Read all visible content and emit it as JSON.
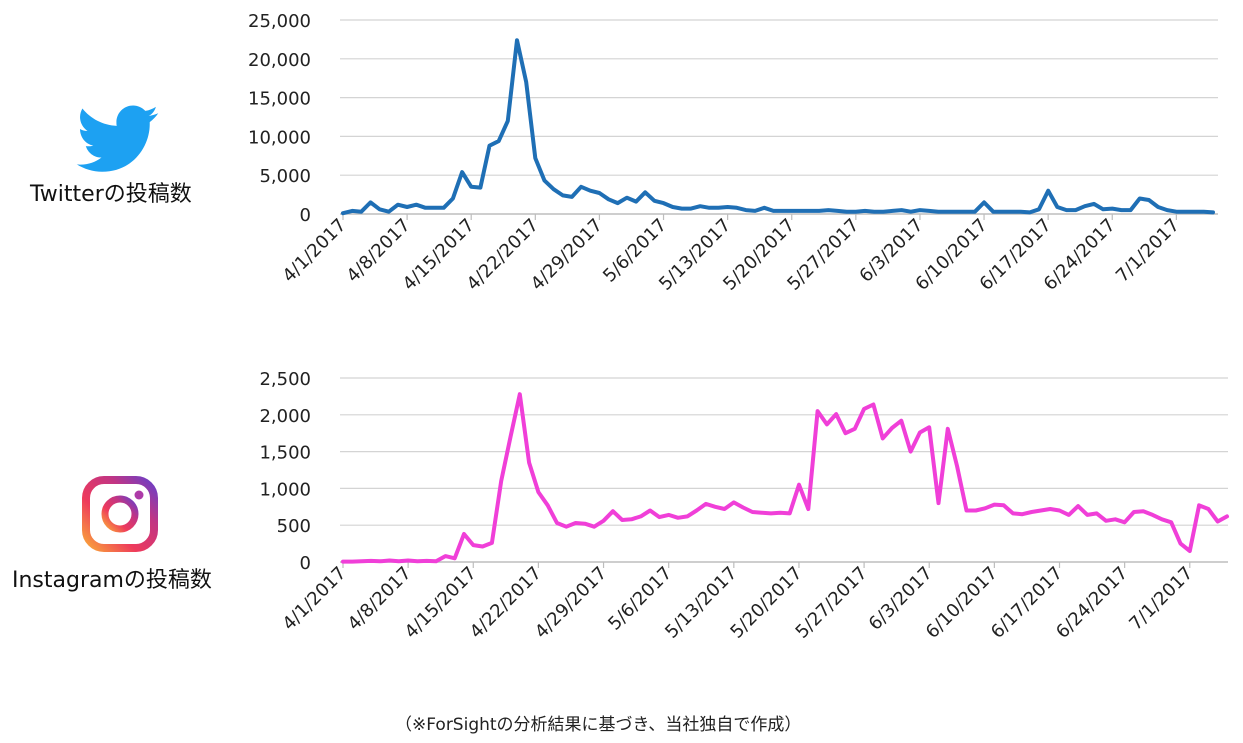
{
  "twitter_label": "Twitterの投稿数",
  "instagram_label": "Instagramの投稿数",
  "footnote": "（※ForSightの分析結果に基づき、当社独自で作成）",
  "icons": {
    "twitter": "twitter-bird-icon",
    "instagram": "instagram-camera-icon"
  },
  "colors": {
    "twitter": "#1f6fb5",
    "instagram": "#f03fd8",
    "grid": "#d4d4d4"
  },
  "chart_data": [
    {
      "type": "line",
      "x_tick_labels": [
        "4/1/2017",
        "4/8/2017",
        "4/15/2017",
        "4/22/2017",
        "4/29/2017",
        "5/6/2017",
        "5/13/2017",
        "5/20/2017",
        "5/27/2017",
        "6/3/2017",
        "6/10/2017",
        "6/17/2017",
        "6/24/2017",
        "7/1/2017"
      ],
      "y_tick_labels": [
        "0",
        "5,000",
        "10,000",
        "15,000",
        "20,000",
        "25,000"
      ],
      "ylim": [
        0,
        25000
      ],
      "grid": true,
      "series": [
        {
          "color": "#1f6fb5",
          "values": [
            100,
            400,
            300,
            1500,
            600,
            300,
            1200,
            900,
            1200,
            800,
            800,
            800,
            2000,
            5400,
            3500,
            3400,
            8800,
            9400,
            12000,
            22400,
            17000,
            7200,
            4300,
            3200,
            2400,
            2200,
            3500,
            3000,
            2700,
            1900,
            1400,
            2100,
            1600,
            2800,
            1700,
            1400,
            900,
            700,
            700,
            1000,
            800,
            800,
            900,
            800,
            500,
            400,
            800,
            400,
            400,
            400,
            400,
            400,
            400,
            500,
            400,
            300,
            300,
            400,
            300,
            300,
            400,
            500,
            300,
            500,
            400,
            300,
            300,
            300,
            300,
            300,
            1500,
            300,
            300,
            300,
            300,
            200,
            600,
            3000,
            900,
            500,
            500,
            1000,
            1300,
            600,
            700,
            500,
            500,
            2000,
            1800,
            900,
            500,
            300,
            300,
            300,
            300,
            200
          ]
        }
      ]
    },
    {
      "type": "line",
      "x_tick_labels": [
        "4/1/2017",
        "4/8/2017",
        "4/15/2017",
        "4/22/2017",
        "4/29/2017",
        "5/6/2017",
        "5/13/2017",
        "5/20/2017",
        "5/27/2017",
        "6/3/2017",
        "6/10/2017",
        "6/17/2017",
        "6/24/2017",
        "7/1/2017"
      ],
      "y_tick_labels": [
        "0",
        "500",
        "1,000",
        "1,500",
        "2,000",
        "2,500"
      ],
      "ylim": [
        0,
        2500
      ],
      "grid": true,
      "series": [
        {
          "color": "#f03fd8",
          "values": [
            5,
            5,
            10,
            15,
            10,
            20,
            10,
            20,
            10,
            15,
            10,
            80,
            50,
            380,
            230,
            210,
            260,
            1100,
            1700,
            2280,
            1350,
            950,
            770,
            530,
            480,
            530,
            520,
            480,
            560,
            690,
            570,
            580,
            620,
            700,
            610,
            640,
            600,
            620,
            700,
            790,
            750,
            720,
            810,
            740,
            680,
            670,
            660,
            670,
            660,
            1050,
            720,
            2050,
            1870,
            2010,
            1750,
            1810,
            2080,
            2140,
            1680,
            1820,
            1920,
            1500,
            1760,
            1830,
            800,
            1810,
            1300,
            700,
            700,
            730,
            780,
            770,
            660,
            650,
            680,
            700,
            720,
            700,
            640,
            760,
            640,
            660,
            560,
            580,
            540,
            680,
            690,
            640,
            580,
            540,
            250,
            150,
            770,
            720,
            550,
            620
          ]
        }
      ]
    }
  ]
}
